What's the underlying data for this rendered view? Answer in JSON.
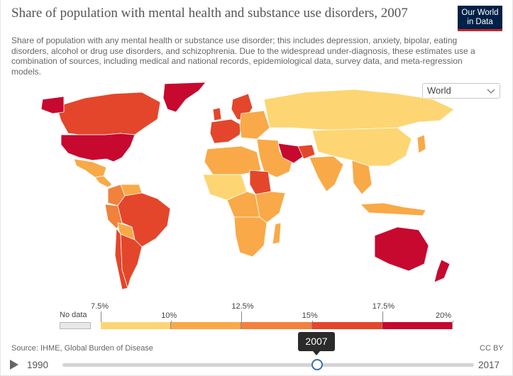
{
  "header": {
    "title": "Share of population with mental health and substance use disorders, 2007",
    "subtitle": "Share of population with any mental health or substance use disorder; this includes depression, anxiety, bipolar, eating disorders, alcohol or drug use disorders, and schizophrenia. Due to the widespread under-diagnosis, these estimates use a combination of sources, including medical and national records, epidemiological data, survey data, and meta-regression models."
  },
  "logo": {
    "line1": "Our World",
    "line2": "in Data"
  },
  "region_select": {
    "selected": "World",
    "icon": "chevron-down-icon"
  },
  "legend": {
    "no_data_label": "No data",
    "ticks": [
      "7.5%",
      "10%",
      "12.5%",
      "15%",
      "17.5%",
      "20%"
    ],
    "bins": [
      {
        "from": 7.5,
        "to": 10,
        "color": "#fdd673"
      },
      {
        "from": 10,
        "to": 12.5,
        "color": "#f9a947"
      },
      {
        "from": 12.5,
        "to": 15,
        "color": "#f2813c"
      },
      {
        "from": 15,
        "to": 17.5,
        "color": "#e4462b"
      },
      {
        "from": 17.5,
        "to": 20,
        "color": "#c7082f"
      }
    ],
    "no_data_color": "#e8e8e8"
  },
  "footer": {
    "source": "Source: IHME, Global Burden of Disease",
    "license": "CC BY"
  },
  "timeline": {
    "start_year": "1990",
    "end_year": "2017",
    "current_year": "2007",
    "play_icon": "play-icon"
  },
  "map_colors": {
    "greenland": "#c7082f",
    "canada": "#e4462b",
    "usa": "#c7082f",
    "mexico": "#f9a947",
    "central_america": "#f9a947",
    "colombia": "#f2813c",
    "venezuela": "#f9a947",
    "brazil": "#e4462b",
    "peru": "#f2813c",
    "bolivia": "#f9a947",
    "argentina": "#e4462b",
    "chile": "#e4462b",
    "europe_west": "#e4462b",
    "europe_east": "#f9a947",
    "scandinavia": "#e4462b",
    "russia": "#fdd673",
    "north_africa": "#f9a947",
    "west_africa": "#fdd673",
    "central_africa": "#f9a947",
    "east_africa": "#f9a947",
    "southern_africa": "#f9a947",
    "sudan": "#e4462b",
    "middle_east": "#f9a947",
    "iran": "#c7082f",
    "afghanistan": "#e4462b",
    "india": "#f9a947",
    "china": "#fdd673",
    "se_asia": "#f9a947",
    "australia": "#c7082f",
    "new_zealand": "#c7082f",
    "indonesia": "#f9a947"
  }
}
